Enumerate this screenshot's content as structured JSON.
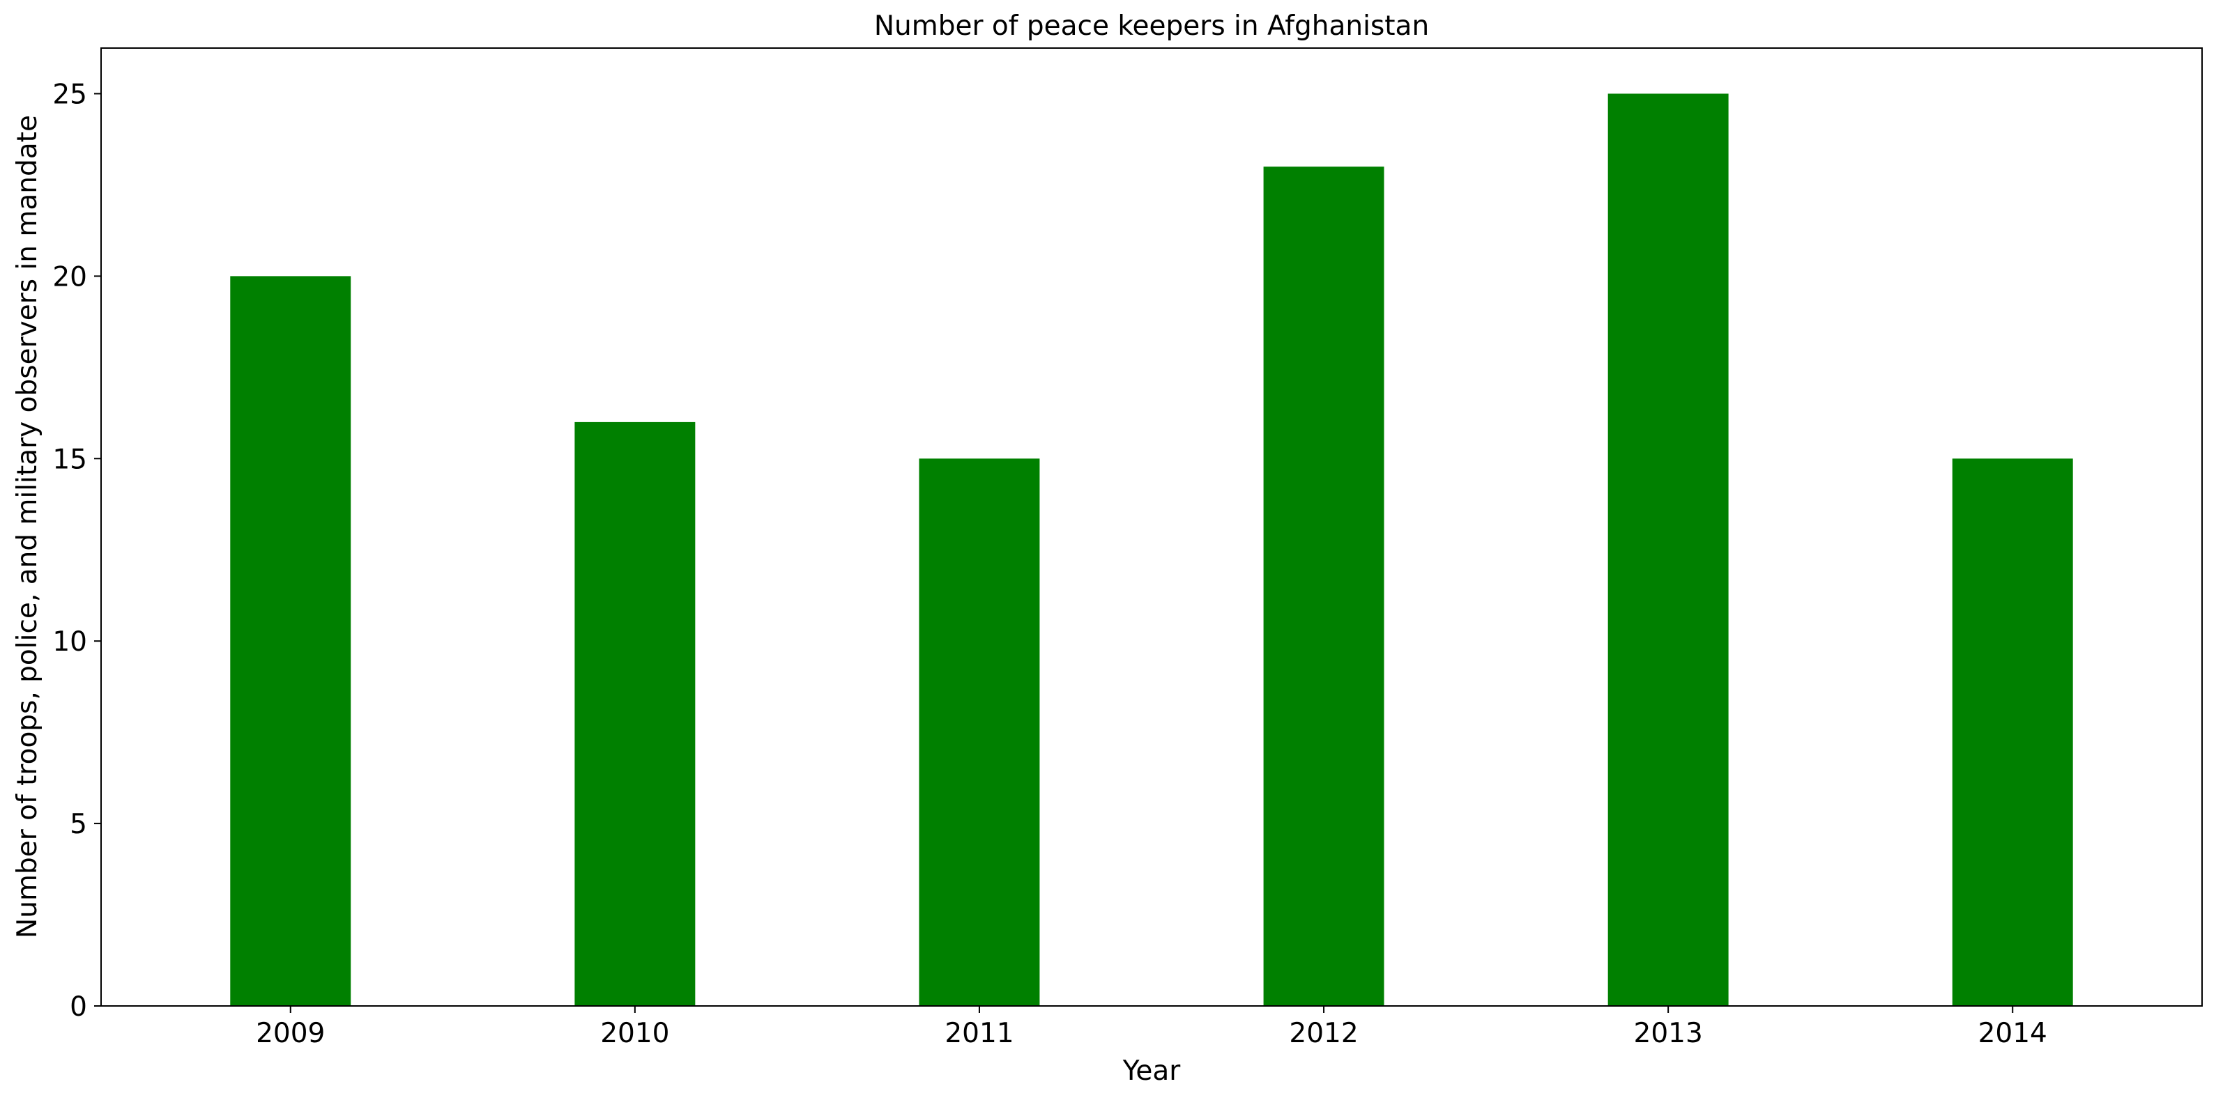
{
  "chart_data": {
    "type": "bar",
    "title": "Number of peace keepers in Afghanistan",
    "xlabel": "Year",
    "ylabel": "Number of troops, police, and military observers in mandate",
    "categories": [
      "2009",
      "2010",
      "2011",
      "2012",
      "2013",
      "2014"
    ],
    "values": [
      20,
      16,
      15,
      23,
      25,
      15
    ],
    "ylim": [
      0,
      26.25
    ],
    "yticks": [
      0,
      5,
      10,
      15,
      20,
      25
    ],
    "bar_color": "#008000",
    "grid": false,
    "legend": "none"
  }
}
